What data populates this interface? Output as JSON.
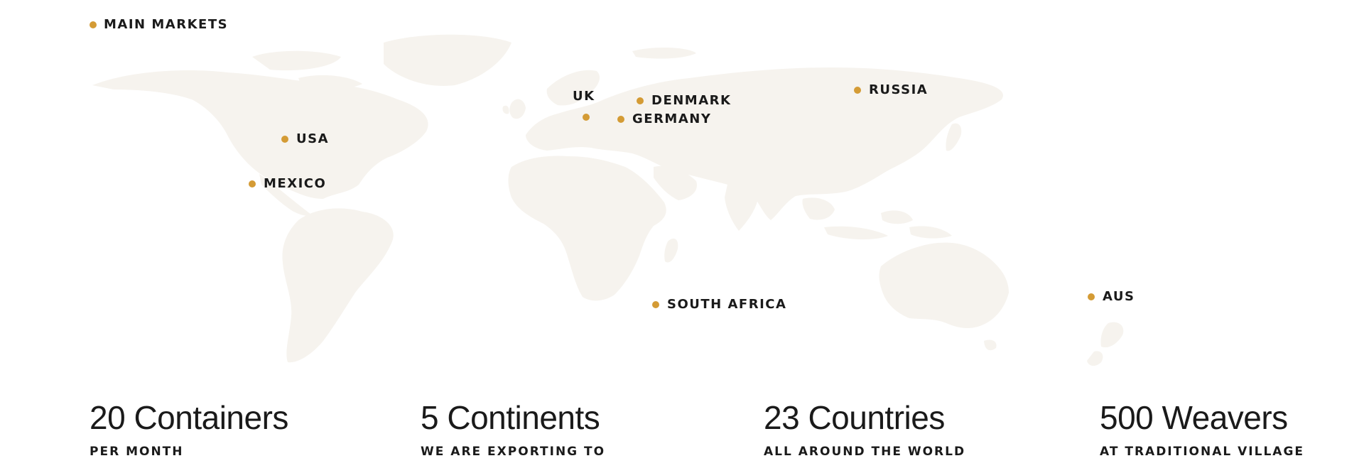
{
  "legend": {
    "label": "MAIN MARKETS",
    "dot_color": "#d49b35"
  },
  "map": {
    "land_color": "#f6f3ee",
    "markers": [
      {
        "id": "usa",
        "label": "USA"
      },
      {
        "id": "mexico",
        "label": "MEXICO"
      },
      {
        "id": "uk",
        "label": "UK"
      },
      {
        "id": "denmark",
        "label": "DENMARK"
      },
      {
        "id": "germany",
        "label": "GERMANY"
      },
      {
        "id": "russia",
        "label": "RUSSIA"
      },
      {
        "id": "south_africa",
        "label": "SOUTH AFRICA"
      },
      {
        "id": "aus",
        "label": "AUS"
      }
    ]
  },
  "stats": [
    {
      "value": "20 Containers",
      "label": "PER MONTH"
    },
    {
      "value": "5 Continents",
      "label": "WE ARE EXPORTING TO"
    },
    {
      "value": "23 Countries",
      "label": "ALL AROUND THE WORLD"
    },
    {
      "value": "500 Weavers",
      "label": "AT TRADITIONAL VILLAGE"
    }
  ]
}
